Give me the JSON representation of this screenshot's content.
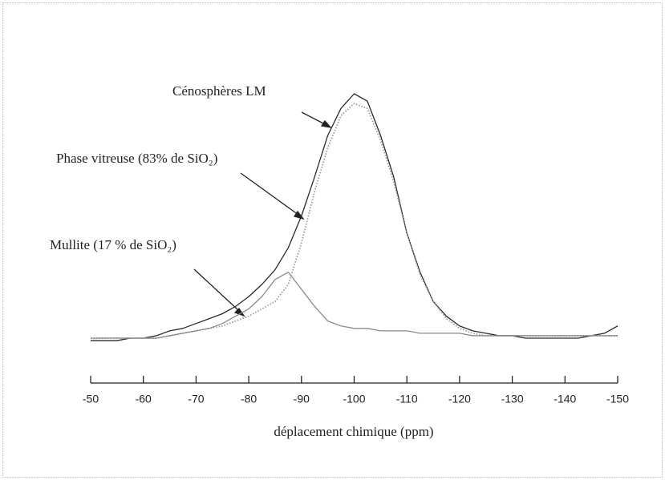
{
  "chart_data": {
    "type": "line",
    "xlabel": "déplacement chimique (ppm)",
    "xlim": [
      -50,
      -150
    ],
    "xticks": [
      -50,
      -60,
      -70,
      -80,
      -90,
      -100,
      -110,
      -120,
      -130,
      -140,
      -150
    ],
    "ylim": [
      0,
      100
    ],
    "x": [
      -50,
      -52.5,
      -55,
      -57.5,
      -60,
      -62.5,
      -65,
      -67.5,
      -70,
      -72.5,
      -75,
      -77.5,
      -80,
      -82.5,
      -85,
      -87.5,
      -90,
      -92.5,
      -95,
      -97.5,
      -100,
      -102.5,
      -105,
      -107.5,
      -110,
      -112.5,
      -115,
      -117.5,
      -120,
      -122.5,
      -125,
      -127.5,
      -130,
      -132.5,
      -135,
      -137.5,
      -140,
      -142.5,
      -145,
      -147.5,
      -150
    ],
    "series": [
      {
        "name": "Cénosphères LM",
        "color": "#2a2a2a",
        "style": "solid",
        "values": [
          -1,
          -1,
          -1,
          0,
          0,
          1,
          3,
          4,
          6,
          8,
          10,
          13,
          17,
          22,
          28,
          37,
          50,
          66,
          83,
          94,
          100,
          97,
          83,
          66,
          43,
          27,
          15,
          9,
          5,
          3,
          2,
          1,
          1,
          0,
          0,
          0,
          0,
          0,
          1,
          2,
          5
        ]
      },
      {
        "name": "Phase vitreuse (83% de SiO₂)",
        "color": "#9a9a9a",
        "style": "dotted",
        "values": [
          0,
          0,
          0,
          0,
          0,
          0,
          1,
          2,
          3,
          4,
          5,
          7,
          9,
          12,
          15,
          22,
          39,
          60,
          78,
          91,
          96,
          94,
          81,
          64,
          43,
          26,
          15,
          8,
          4,
          2,
          1,
          1,
          1,
          1,
          1,
          1,
          1,
          1,
          1,
          1,
          1
        ]
      },
      {
        "name": "Mullite (17 % de SiO₂)",
        "color": "#8a8a8a",
        "style": "solid",
        "values": [
          0,
          0,
          0,
          0,
          0,
          0,
          1,
          2,
          3,
          4,
          6,
          9,
          12,
          17,
          24,
          27,
          20,
          13,
          7,
          5,
          4,
          4,
          3,
          3,
          3,
          2,
          2,
          2,
          2,
          1,
          1,
          1,
          1,
          1,
          1,
          1,
          1,
          1,
          1,
          1,
          1
        ]
      }
    ]
  }
}
